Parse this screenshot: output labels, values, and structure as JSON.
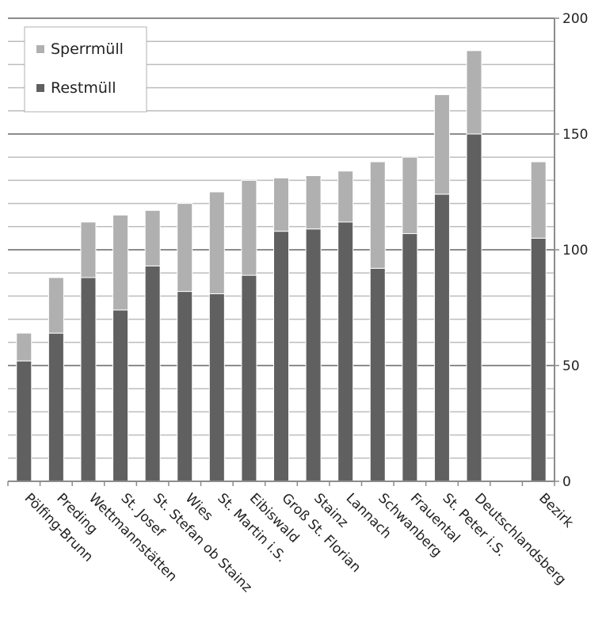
{
  "chart_data": {
    "type": "bar",
    "stacked": true,
    "categories": [
      "Pölfing-Brunn",
      "Preding",
      "Wettmannstätten",
      "St. Josef",
      "St. Stefan ob Stainz",
      "Wies",
      "St. Martin i.S.",
      "Eibiswald",
      "Groß St. Florian",
      "Stainz",
      "Lannach",
      "Schwanberg",
      "Frauental",
      "St. Peter i.S.",
      "Deutschlandsberg",
      "",
      "Bezirk"
    ],
    "series": [
      {
        "name": "Restmüll",
        "color": "#606060",
        "values": [
          52,
          64,
          88,
          74,
          93,
          82,
          81,
          89,
          108,
          109,
          112,
          92,
          107,
          124,
          150,
          null,
          105
        ]
      },
      {
        "name": "Sperrmüll",
        "color": "#b0b0b0",
        "values": [
          12,
          24,
          24,
          41,
          24,
          38,
          44,
          41,
          23,
          23,
          22,
          46,
          33,
          43,
          36,
          null,
          33
        ]
      }
    ],
    "y_ticks": [
      "0",
      "50",
      "100",
      "150",
      "200"
    ],
    "ylim": [
      0,
      200
    ],
    "y_axis_position": "right",
    "grid": true,
    "legend_position": "top-left",
    "legend": [
      "Sperrmüll",
      "Restmüll"
    ]
  }
}
